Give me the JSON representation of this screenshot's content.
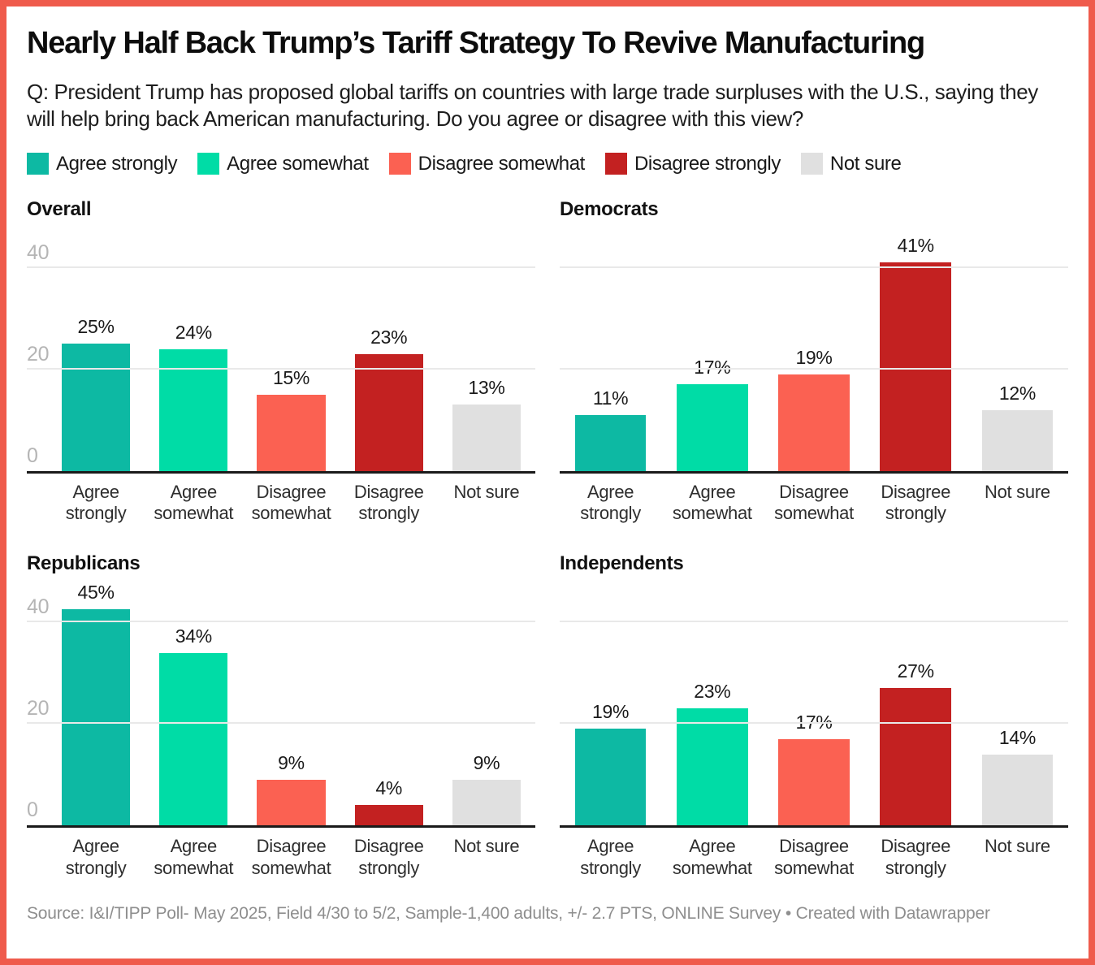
{
  "header": {
    "title": "Nearly Half Back Trump’s Tariff Strategy To Revive Manufacturing",
    "subtitle": "Q: President Trump has proposed global tariffs on countries with large trade surpluses with the U.S., saying they will help bring back American manufacturing. Do you agree or disagree with this view?"
  },
  "legend": [
    {
      "label": "Agree strongly",
      "color": "#0db9a3"
    },
    {
      "label": "Agree somewhat",
      "color": "#00dca6"
    },
    {
      "label": "Disagree somewhat",
      "color": "#fb6152"
    },
    {
      "label": "Disagree strongly",
      "color": "#c32121"
    },
    {
      "label": "Not sure",
      "color": "#e0e0e0"
    }
  ],
  "chart_data": {
    "type": "bar",
    "layout": "small-multiples-2x2",
    "categories": [
      "Agree strongly",
      "Agree somewhat",
      "Disagree somewhat",
      "Disagree strongly",
      "Not sure"
    ],
    "colors": [
      "#0db9a3",
      "#00dca6",
      "#fb6152",
      "#c32121",
      "#e0e0e0"
    ],
    "value_suffix": "%",
    "y_ticks": [
      0,
      20,
      40
    ],
    "ylim": [
      0,
      48
    ],
    "grid": "horizontal",
    "panels": [
      {
        "title": "Overall",
        "values": [
          25,
          24,
          15,
          23,
          13
        ],
        "show_y_labels": true
      },
      {
        "title": "Democrats",
        "values": [
          11,
          17,
          19,
          41,
          12
        ],
        "show_y_labels": false
      },
      {
        "title": "Republicans",
        "values": [
          45,
          34,
          9,
          4,
          9
        ],
        "show_y_labels": true
      },
      {
        "title": "Independents",
        "values": [
          19,
          23,
          17,
          27,
          14
        ],
        "show_y_labels": false
      }
    ]
  },
  "footer": {
    "source": "Source: I&I/TIPP Poll- May 2025, Field 4/30 to 5/2, Sample-1,400 adults, +/- 2.7 PTS, ONLINE Survey • Created with Datawrapper"
  },
  "colors": {
    "frame_border": "#ef5b4c",
    "gridline": "#e9e9e9",
    "baseline": "#1a1a1a",
    "tick_label": "#b5b5b5"
  }
}
